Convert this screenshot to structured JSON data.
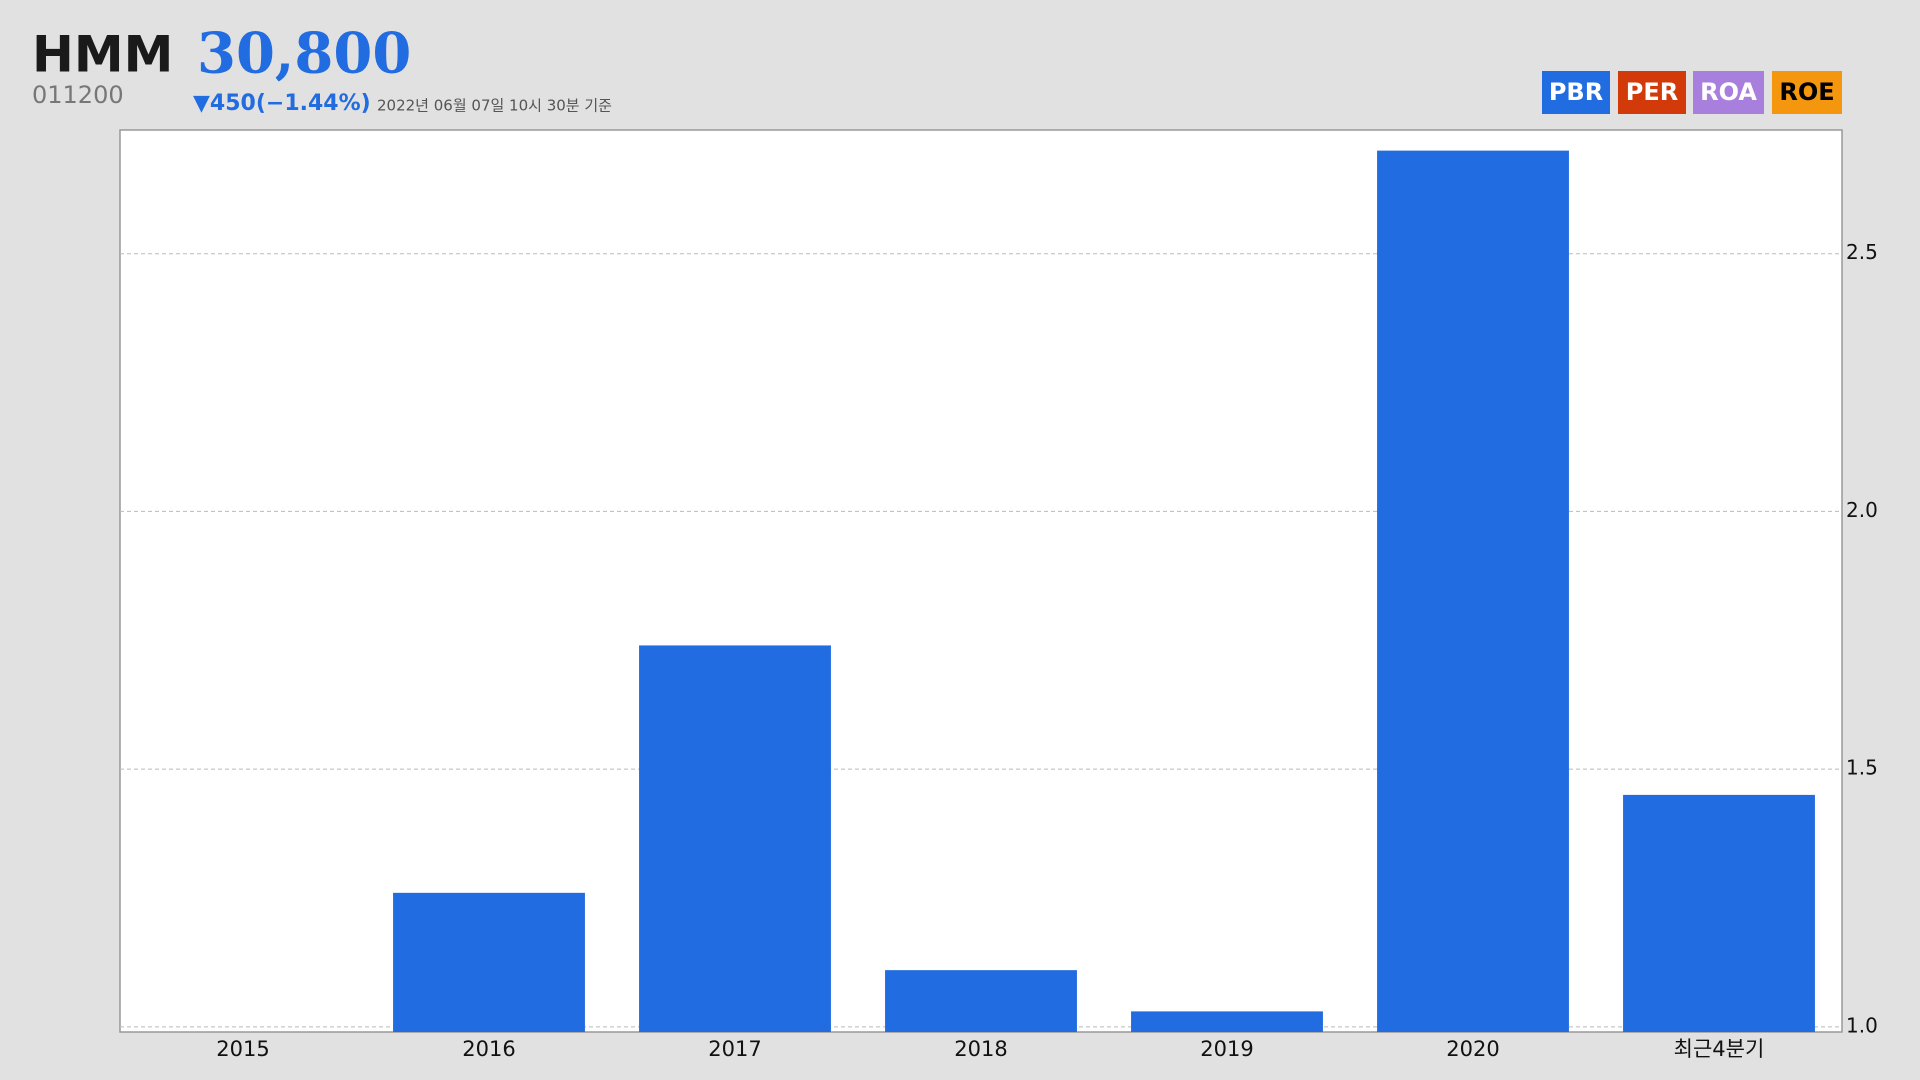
{
  "header": {
    "name": "HMM",
    "price": "30,800",
    "code": "011200",
    "change": "▼450(−1.44%)",
    "timestamp": "2022년 06월 07일 10시 30분 기준"
  },
  "tabs": [
    {
      "label": "PBR",
      "color": "#216ce0"
    },
    {
      "label": "PER",
      "color": "#d23a0a"
    },
    {
      "label": "ROA",
      "color": "#a97fde"
    },
    {
      "label": "ROE",
      "color": "#f5960f"
    }
  ],
  "chart_data": {
    "type": "bar",
    "categories": [
      "2015",
      "2016",
      "2017",
      "2018",
      "2019",
      "2020",
      "최근4분기"
    ],
    "values": [
      null,
      1.26,
      1.74,
      1.11,
      1.03,
      2.7,
      1.45
    ],
    "color": "#216ce0",
    "ylim": [
      0.99,
      2.74
    ],
    "yticks": [
      {
        "value": 1,
        "label": "1.0"
      },
      1.5,
      {
        "value": 2,
        "label": "2.0"
      },
      2.5
    ],
    "grid": true
  }
}
